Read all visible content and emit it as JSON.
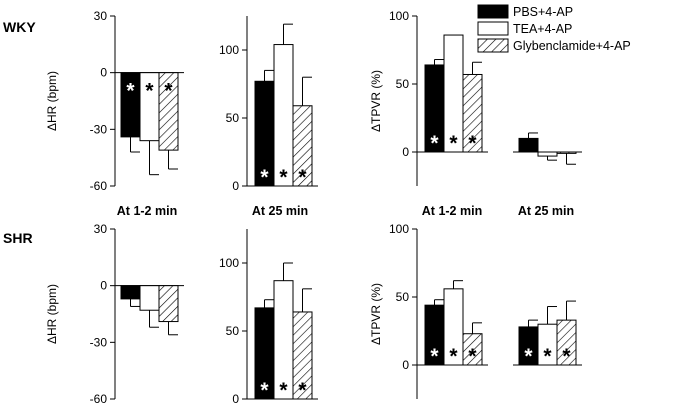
{
  "chart_data": {
    "type": "bar",
    "row_labels": [
      "WKY",
      "SHR"
    ],
    "legend": {
      "placement": "top-right",
      "entries": [
        {
          "label": "PBS+4-AP",
          "pattern": "solid"
        },
        {
          "label": "TEA+4-AP",
          "pattern": "open"
        },
        {
          "label": "Glybenclamide+4-AP",
          "pattern": "hatched"
        }
      ]
    },
    "category_labels": {
      "hr_early": "At 1-2 min",
      "hr_late": "At 25 min",
      "tpvr_early": "At 1-2 min",
      "tpvr_late": "At 25 min"
    },
    "ylabels": {
      "hr": "ΔHR (bpm)",
      "tpvr": "ΔTPVR (%)"
    },
    "star_symbol": "*",
    "panels": [
      {
        "id": "wky-hr-early",
        "row": 0,
        "ylabel_key": "hr",
        "ylim": [
          -60,
          30
        ],
        "ticks": [
          30,
          0,
          -30,
          -60
        ],
        "values": [
          -34,
          -36,
          -41
        ],
        "errors": [
          8,
          18,
          10
        ],
        "stars": [
          true,
          true,
          true
        ],
        "star_pos": "top"
      },
      {
        "id": "wky-hr-late",
        "row": 0,
        "ylim": [
          0,
          125
        ],
        "ticks": [
          100,
          50,
          0
        ],
        "values": [
          77,
          104,
          59
        ],
        "errors": [
          8,
          15,
          21
        ],
        "stars": [
          true,
          true,
          true
        ],
        "star_pos": "bottom"
      },
      {
        "id": "wky-tpvr-early",
        "row": 0,
        "ylabel_key": "tpvr",
        "ylim": [
          -25,
          100
        ],
        "ticks": [
          100,
          50,
          0
        ],
        "values": [
          64,
          86,
          57
        ],
        "errors": [
          4,
          0,
          9
        ],
        "stars": [
          true,
          true,
          true
        ],
        "star_pos": "bottom"
      },
      {
        "id": "wky-tpvr-late",
        "row": 0,
        "ylim": [
          -25,
          100
        ],
        "ticks": [],
        "values": [
          10,
          -3,
          -1
        ],
        "errors": [
          4,
          3,
          8
        ],
        "stars": [
          false,
          false,
          false
        ],
        "star_pos": "bottom"
      },
      {
        "id": "shr-hr-early",
        "row": 1,
        "ylabel_key": "hr",
        "ylim": [
          -60,
          30
        ],
        "ticks": [
          30,
          0,
          -30,
          -60
        ],
        "values": [
          -7,
          -13,
          -19
        ],
        "errors": [
          4,
          9,
          7
        ],
        "stars": [
          false,
          false,
          false
        ],
        "star_pos": "top"
      },
      {
        "id": "shr-hr-late",
        "row": 1,
        "ylim": [
          0,
          125
        ],
        "ticks": [
          100,
          50,
          0
        ],
        "values": [
          67,
          87,
          64
        ],
        "errors": [
          6,
          13,
          17
        ],
        "stars": [
          true,
          true,
          true
        ],
        "star_pos": "bottom"
      },
      {
        "id": "shr-tpvr-early",
        "row": 1,
        "ylabel_key": "tpvr",
        "ylim": [
          -25,
          100
        ],
        "ticks": [
          100,
          50,
          0
        ],
        "values": [
          44,
          56,
          23
        ],
        "errors": [
          4,
          6,
          8
        ],
        "stars": [
          true,
          true,
          true
        ],
        "star_pos": "bottom"
      },
      {
        "id": "shr-tpvr-late",
        "row": 1,
        "ylim": [
          -25,
          100
        ],
        "ticks": [],
        "values": [
          28,
          30,
          33
        ],
        "errors": [
          5,
          13,
          14
        ],
        "stars": [
          true,
          true,
          true
        ],
        "star_pos": "bottom"
      }
    ]
  }
}
